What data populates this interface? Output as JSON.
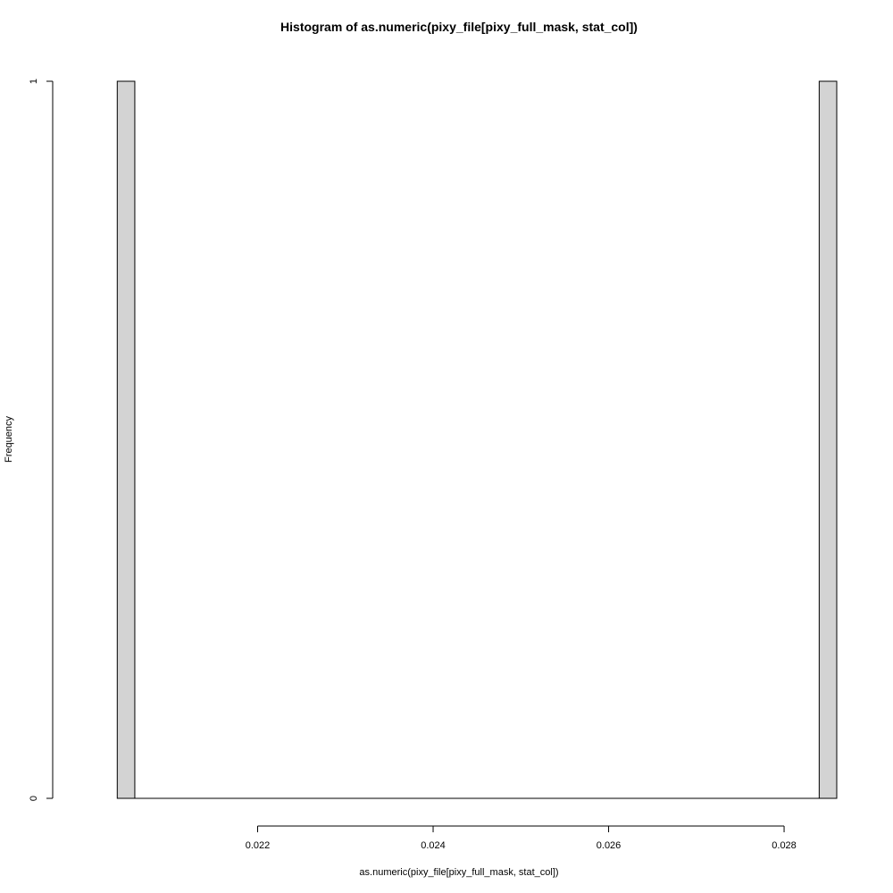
{
  "chart_data": {
    "type": "bar",
    "title": "Histogram of as.numeric(pixy_file[pixy_full_mask, stat_col])",
    "xlabel": "as.numeric(pixy_file[pixy_full_mask, stat_col])",
    "ylabel": "Frequency",
    "xlim": [
      0.02,
      0.0286
    ],
    "ylim": [
      0,
      1
    ],
    "x_ticks": [
      0.022,
      0.024,
      0.026,
      0.028
    ],
    "x_tick_labels": [
      "0.022",
      "0.024",
      "0.026",
      "0.028"
    ],
    "y_ticks": [
      0,
      1
    ],
    "y_tick_labels": [
      "0",
      "1"
    ],
    "bins": [
      {
        "start": 0.0204,
        "end": 0.0206,
        "count": 1
      },
      {
        "start": 0.0284,
        "end": 0.0286,
        "count": 1
      }
    ],
    "bar_fill": "#d3d3d3",
    "bar_stroke": "#000000",
    "grid": false
  }
}
